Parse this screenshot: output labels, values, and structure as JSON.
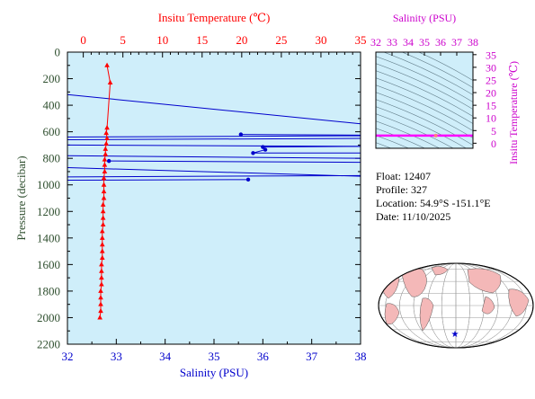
{
  "chart_data": [
    {
      "type": "line",
      "description_axes": "profile",
      "axes": {
        "pressure": {
          "label": "Pressure (decibar)",
          "range": [
            0,
            2200
          ],
          "inverted": true,
          "ticks": [
            0,
            200,
            400,
            600,
            800,
            1000,
            1200,
            1400,
            1600,
            1800,
            2000,
            2200
          ]
        },
        "temperature": {
          "label": "Insitu Temperature (℃)",
          "range": [
            -2,
            35
          ],
          "ticks": [
            0,
            5,
            10,
            15,
            20,
            25,
            30,
            35
          ]
        },
        "salinity": {
          "label": "Salinity (PSU)",
          "range": [
            32,
            38
          ],
          "ticks": [
            32,
            33,
            34,
            35,
            36,
            37,
            38
          ]
        }
      },
      "series": [
        {
          "quantity": "temperature",
          "color": "#ff0000",
          "marker": "triangle",
          "points": [
            [
              3.0,
              100
            ],
            [
              3.4,
              230
            ],
            [
              3.0,
              570
            ],
            [
              2.9,
              610
            ],
            [
              3.0,
              650
            ],
            [
              2.9,
              690
            ],
            [
              2.8,
              730
            ],
            [
              2.8,
              770
            ],
            [
              2.7,
              810
            ],
            [
              2.7,
              850
            ],
            [
              2.7,
              900
            ],
            [
              2.6,
              950
            ],
            [
              2.6,
              1000
            ],
            [
              2.6,
              1050
            ],
            [
              2.6,
              1100
            ],
            [
              2.5,
              1150
            ],
            [
              2.5,
              1200
            ],
            [
              2.5,
              1250
            ],
            [
              2.5,
              1300
            ],
            [
              2.4,
              1350
            ],
            [
              2.4,
              1400
            ],
            [
              2.4,
              1450
            ],
            [
              2.4,
              1500
            ],
            [
              2.4,
              1550
            ],
            [
              2.3,
              1600
            ],
            [
              2.3,
              1650
            ],
            [
              2.3,
              1700
            ],
            [
              2.3,
              1750
            ],
            [
              2.2,
              1800
            ],
            [
              2.2,
              1850
            ],
            [
              2.2,
              1900
            ],
            [
              2.2,
              1950
            ],
            [
              2.1,
              2000
            ]
          ]
        },
        {
          "quantity": "salinity",
          "color": "#0000cc",
          "marker": "dot",
          "segments": [
            [
              [
                32.0,
                320
              ],
              [
                38.0,
                540
              ]
            ],
            [
              [
                32.0,
                640
              ],
              [
                38.0,
                630
              ]
            ],
            [
              [
                35.55,
                620
              ],
              [
                38.0,
                625
              ]
            ],
            [
              [
                32.0,
                660
              ],
              [
                38.0,
                650
              ]
            ],
            [
              [
                32.0,
                700
              ],
              [
                38.0,
                710
              ]
            ],
            [
              [
                36.0,
                715
              ],
              [
                38.0,
                710
              ]
            ],
            [
              [
                36.05,
                735
              ],
              [
                35.8,
                760
              ],
              [
                38.0,
                760
              ]
            ],
            [
              [
                32.0,
                780
              ],
              [
                38.0,
                800
              ]
            ],
            [
              [
                32.85,
                820
              ],
              [
                38.0,
                830
              ]
            ],
            [
              [
                32.0,
                870
              ],
              [
                38.0,
                935
              ]
            ],
            [
              [
                32.0,
                940
              ],
              [
                38.0,
                930
              ]
            ],
            [
              [
                32.0,
                965
              ],
              [
                35.7,
                960
              ]
            ]
          ],
          "markers": [
            [
              35.55,
              620
            ],
            [
              36.0,
              715
            ],
            [
              36.05,
              735
            ],
            [
              35.8,
              760
            ],
            [
              32.85,
              820
            ],
            [
              35.7,
              960
            ]
          ]
        }
      ]
    },
    {
      "type": "scatter",
      "description_axes": "ts-inset",
      "axes": {
        "salinity": {
          "label": "Salinity (PSU)",
          "range": [
            32,
            38
          ],
          "ticks": [
            32,
            33,
            34,
            35,
            36,
            37,
            38
          ]
        },
        "temperature": {
          "label": "Insitu Temperature (℃)",
          "range": [
            -2,
            36
          ],
          "ticks": [
            0,
            5,
            10,
            15,
            20,
            25,
            30,
            35
          ]
        }
      },
      "series": [
        {
          "color": "#ff00ff",
          "points": [
            [
              32.0,
              3.0
            ],
            [
              38.0,
              3.0
            ]
          ]
        },
        {
          "color": "#ff8080",
          "points": [
            [
              35.7,
              3.0
            ]
          ]
        }
      ]
    }
  ],
  "info": {
    "float": "Float:  12407",
    "profile": "Profile:  327",
    "location": "Location:  54.9°S  -151.1°E",
    "date": "Date:  11/10/2025"
  },
  "map": {
    "marker_symbol": "★",
    "marker_color": "#0000cc"
  },
  "colors": {
    "plot_bg": "#cfeefa",
    "temperature": "#ff0000",
    "salinity": "#0000cc",
    "pressure_axis": "#2f4f2f",
    "inset_axis": "#cc00cc",
    "land": "#f4b8b8"
  }
}
